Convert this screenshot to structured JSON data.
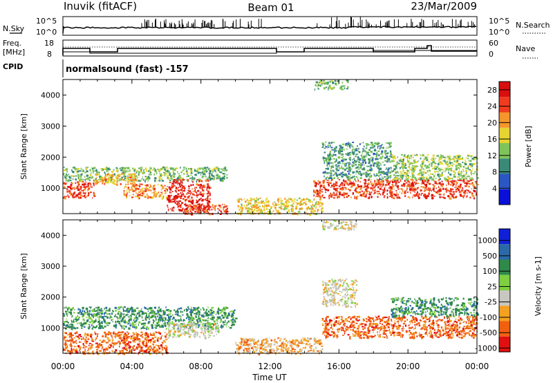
{
  "header": {
    "station": "Inuvik (fitACF)",
    "beam": "Beam 01",
    "date": "23/Mar/2009"
  },
  "noise_panel": {
    "left_label": "N.Sky",
    "right_label": "N.Search",
    "tick_top": "10^5",
    "tick_bottom": "10^0"
  },
  "freq_panel": {
    "left_label_line1": "Freq.",
    "left_label_line2": "[MHz]",
    "left_tick_top": "18",
    "left_tick_bottom": "8",
    "right_label": "Nave",
    "right_tick_top": "60",
    "right_tick_bottom": "0"
  },
  "cpid_panel": {
    "label": "CPID",
    "text": "normalsound (fast) -157"
  },
  "chart_data": [
    {
      "type": "heatmap",
      "name": "power",
      "xlabel": "",
      "ylabel": "Slant Range [km]",
      "x_ticks": [
        "00:00",
        "04:00",
        "08:00",
        "12:00",
        "16:00",
        "20:00",
        "00:00"
      ],
      "xlim_hours": [
        0,
        24
      ],
      "ylim_km": [
        180,
        4500
      ],
      "y_ticks": [
        1000,
        2000,
        3000,
        4000
      ],
      "colorbar_label": "Power [dB]",
      "colorbar_ticks": [
        4,
        8,
        12,
        16,
        20,
        24,
        28
      ],
      "colorbar_range": [
        0,
        30
      ],
      "colorbar_colors": [
        "#0a10d8",
        "#2b57c4",
        "#3a8a78",
        "#7ec45a",
        "#e6d430",
        "#f4962c",
        "#ef3b1e",
        "#d90e0e"
      ],
      "regions": [
        {
          "t": [
            0,
            1.8
          ],
          "r": [
            700,
            1250
          ],
          "level": 26
        },
        {
          "t": [
            0,
            9.5
          ],
          "r": [
            1250,
            1700
          ],
          "level": 12
        },
        {
          "t": [
            1.8,
            4.2
          ],
          "r": [
            1150,
            1500
          ],
          "level": 20
        },
        {
          "t": [
            3.5,
            6.0
          ],
          "r": [
            700,
            1150
          ],
          "level": 22
        },
        {
          "t": [
            6.0,
            8.5
          ],
          "r": [
            300,
            1300
          ],
          "level": 28
        },
        {
          "t": [
            7.0,
            9.5
          ],
          "r": [
            180,
            500
          ],
          "level": 26
        },
        {
          "t": [
            10.0,
            15.0
          ],
          "r": [
            180,
            700
          ],
          "level": 18
        },
        {
          "t": [
            14.5,
            24
          ],
          "r": [
            700,
            1300
          ],
          "level": 26
        },
        {
          "t": [
            15.0,
            19.0
          ],
          "r": [
            1300,
            2500
          ],
          "level": 10
        },
        {
          "t": [
            19.0,
            24
          ],
          "r": [
            1300,
            2100
          ],
          "level": 14
        },
        {
          "t": [
            14.5,
            16.5
          ],
          "r": [
            4200,
            4500
          ],
          "level": 12
        }
      ]
    },
    {
      "type": "heatmap",
      "name": "velocity",
      "xlabel": "Time UT",
      "ylabel": "Slant Range [km]",
      "x_ticks": [
        "00:00",
        "04:00",
        "08:00",
        "12:00",
        "16:00",
        "20:00",
        "00:00"
      ],
      "xlim_hours": [
        0,
        24
      ],
      "ylim_km": [
        180,
        4500
      ],
      "y_ticks": [
        1000,
        2000,
        3000,
        4000
      ],
      "colorbar_label": "Velocity [m s-1]",
      "colorbar_ticks": [
        "1000",
        "500",
        "100",
        "25",
        "-25",
        "-100",
        "-500",
        "-1000"
      ],
      "colorbar_colors": [
        "#1020d8",
        "#2a6aa8",
        "#2f8a4a",
        "#7ed040",
        "#c8c8c0",
        "#f4a020",
        "#f06010",
        "#e01010"
      ],
      "regions": [
        {
          "t": [
            0,
            10
          ],
          "r": [
            1000,
            1700
          ],
          "level": 2
        },
        {
          "t": [
            0,
            6
          ],
          "r": [
            180,
            900
          ],
          "level": 6
        },
        {
          "t": [
            6,
            9
          ],
          "r": [
            700,
            1200
          ],
          "level": 4
        },
        {
          "t": [
            10,
            15
          ],
          "r": [
            180,
            700
          ],
          "level": 5
        },
        {
          "t": [
            15,
            17
          ],
          "r": [
            1700,
            2600
          ],
          "level": 4
        },
        {
          "t": [
            15,
            24
          ],
          "r": [
            700,
            1400
          ],
          "level": 6
        },
        {
          "t": [
            19,
            24
          ],
          "r": [
            1400,
            2000
          ],
          "level": 2
        },
        {
          "t": [
            15,
            17
          ],
          "r": [
            4200,
            4500
          ],
          "level": 4
        }
      ]
    }
  ]
}
